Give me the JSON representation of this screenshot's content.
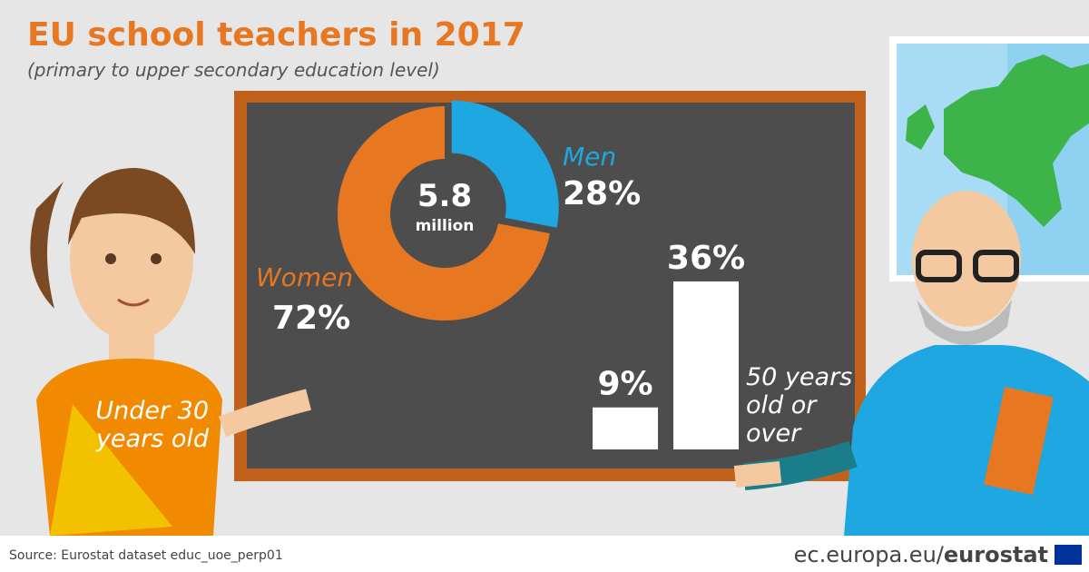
{
  "title": "EU school teachers in 2017",
  "subtitle": "(primary to upper secondary education level)",
  "source": "Source: Eurostat dataset educ_uoe_perp01",
  "footer": {
    "site": "ec.europa.eu/",
    "brand": "eurostat"
  },
  "chart_data": [
    {
      "type": "pie",
      "donut": true,
      "center_value": 5.8,
      "center_unit": "million",
      "categories": [
        "Women",
        "Men"
      ],
      "values": [
        72,
        28
      ],
      "value_labels": [
        "72%",
        "28%"
      ],
      "colors": [
        "#e87722",
        "#1ea7e1"
      ]
    },
    {
      "type": "bar",
      "categories": [
        "Under 30 years old",
        "50 years old or over"
      ],
      "values": [
        9,
        36
      ],
      "value_labels": [
        "9%",
        "36%"
      ],
      "color": "#ffffff"
    }
  ]
}
